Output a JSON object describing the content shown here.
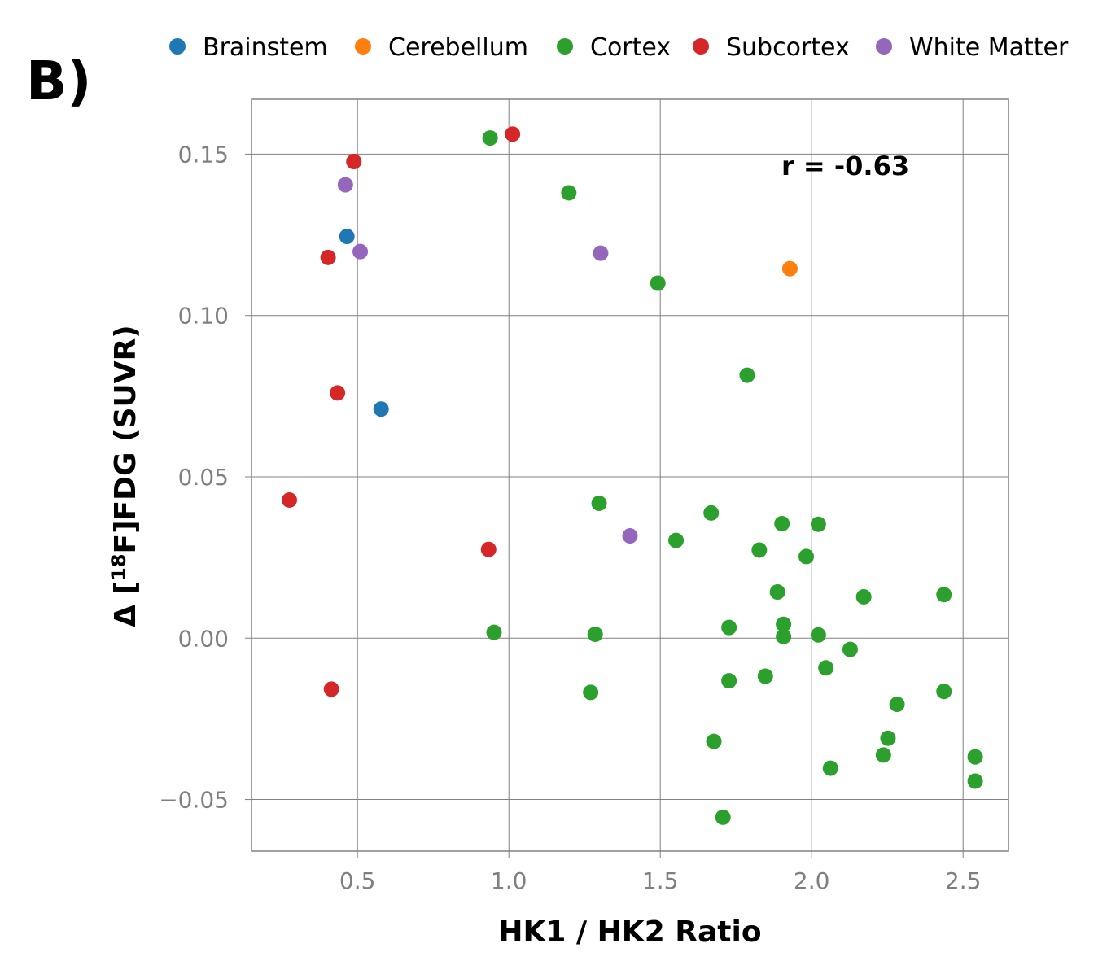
{
  "panel_label": "B)",
  "chart_data": {
    "type": "scatter",
    "xlabel": "HK1 / HK2 Ratio",
    "ylabel_parts": [
      "Δ [",
      "18",
      "F]FDG (SUVR)"
    ],
    "xlim": [
      0.15,
      2.65
    ],
    "ylim": [
      -0.066,
      0.167
    ],
    "xticks": [
      0.5,
      1.0,
      1.5,
      2.0,
      2.5
    ],
    "xtick_labels": [
      "0.5",
      "1.0",
      "1.5",
      "2.0",
      "2.5"
    ],
    "yticks": [
      0.15,
      0.1,
      0.05,
      0.0,
      -0.05
    ],
    "ytick_labels": [
      "0.15",
      "0.10",
      "0.05",
      "0.00",
      "−0.05"
    ],
    "grid": true,
    "legend_position": "top",
    "annotation": "r = -0.63",
    "series": [
      {
        "name": "Brainstem",
        "color": "#1f77b4",
        "points": [
          [
            0.465,
            0.1245
          ],
          [
            0.578,
            0.071
          ]
        ]
      },
      {
        "name": "Cerebellum",
        "color": "#ff7f0e",
        "points": [
          [
            1.928,
            0.1145
          ]
        ]
      },
      {
        "name": "Cortex",
        "color": "#2ca02c",
        "points": [
          [
            0.938,
            0.155
          ],
          [
            1.198,
            0.138
          ],
          [
            1.492,
            0.11
          ],
          [
            1.787,
            0.0815
          ],
          [
            1.298,
            0.0418
          ],
          [
            1.668,
            0.0388
          ],
          [
            1.902,
            0.0355
          ],
          [
            2.022,
            0.0353
          ],
          [
            1.552,
            0.0303
          ],
          [
            1.827,
            0.0273
          ],
          [
            1.982,
            0.0253
          ],
          [
            1.887,
            0.0143
          ],
          [
            2.172,
            0.0128
          ],
          [
            2.437,
            0.0135
          ],
          [
            1.907,
            0.0043
          ],
          [
            1.727,
            0.0033
          ],
          [
            0.951,
            0.0018
          ],
          [
            1.285,
            0.0012
          ],
          [
            2.022,
            0.001
          ],
          [
            1.907,
            0.0005
          ],
          [
            2.127,
            -0.0035
          ],
          [
            2.047,
            -0.0092
          ],
          [
            1.847,
            -0.0118
          ],
          [
            1.727,
            -0.0132
          ],
          [
            1.27,
            -0.0168
          ],
          [
            2.437,
            -0.0165
          ],
          [
            2.282,
            -0.0205
          ],
          [
            1.677,
            -0.032
          ],
          [
            2.252,
            -0.031
          ],
          [
            2.237,
            -0.0362
          ],
          [
            2.54,
            -0.0368
          ],
          [
            2.062,
            -0.0403
          ],
          [
            2.54,
            -0.0443
          ],
          [
            1.707,
            -0.0555
          ]
        ]
      },
      {
        "name": "Subcortex",
        "color": "#d62728",
        "points": [
          [
            1.012,
            0.1562
          ],
          [
            0.488,
            0.1477
          ],
          [
            0.403,
            0.118
          ],
          [
            0.434,
            0.076
          ],
          [
            0.275,
            0.0428
          ],
          [
            0.933,
            0.0275
          ],
          [
            0.414,
            -0.0158
          ]
        ]
      },
      {
        "name": "White Matter",
        "color": "#9467bd",
        "points": [
          [
            0.46,
            0.1405
          ],
          [
            0.509,
            0.1198
          ],
          [
            1.303,
            0.1193
          ],
          [
            1.4,
            0.0317
          ]
        ]
      }
    ]
  }
}
